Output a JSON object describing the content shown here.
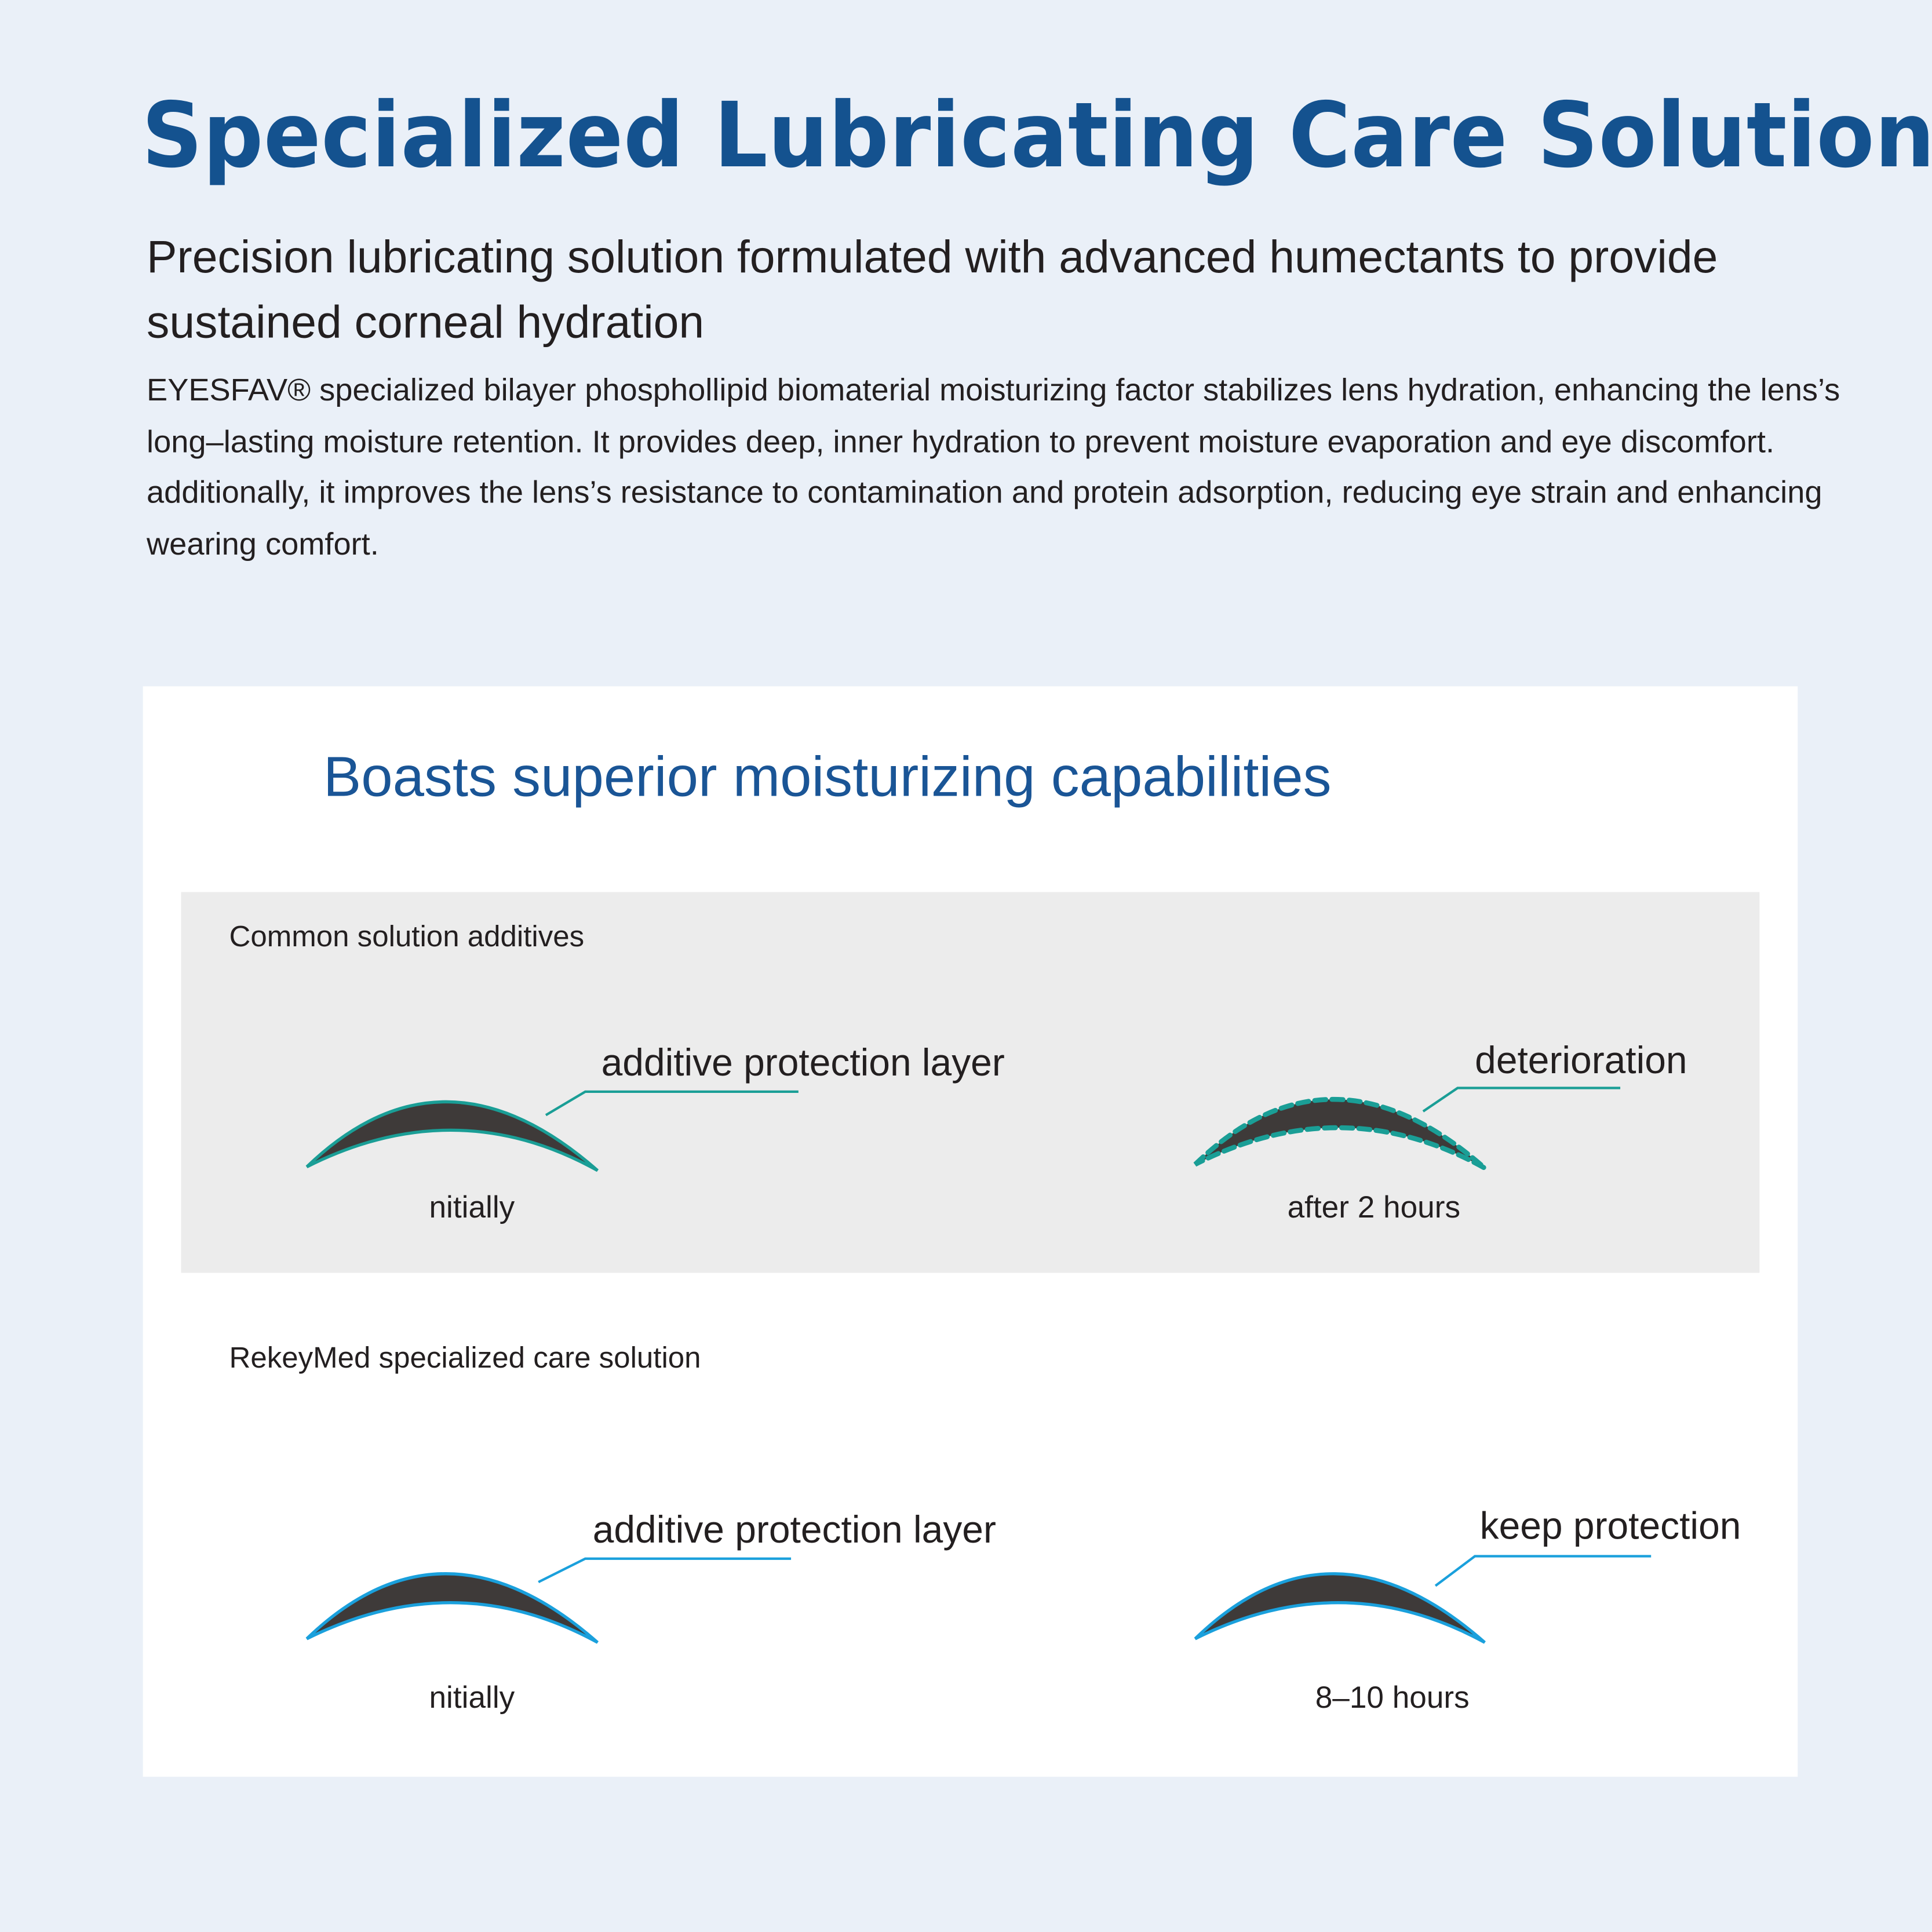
{
  "header": {
    "title": "Specialized Lubricating Care Solution",
    "subtitle": "Precision lubricating solution formulated with advanced humectants to provide sustained corneal hydration",
    "body": "EYESFAV® specialized bilayer phosphollipid biomaterial moisturizing factor stabilizes lens hydration, enhancing the lens’s long–lasting moisture retention. It provides deep, inner hydration to prevent moisture evaporation and eye discomfort. additionally, it improves the lens’s resistance to contamination and protein adsorption, reducing eye strain and enhancing wearing comfort."
  },
  "comparison": {
    "title": "Boasts superior moisturizing capabilities",
    "common": {
      "label": "Common solution additives",
      "left_callout": "additive protection layer",
      "left_caption": "nitially",
      "right_callout": "deterioration",
      "right_caption": "after 2 hours",
      "color": "#1a9e96"
    },
    "rekeymed": {
      "label": "RekeyMed specialized care solution",
      "left_callout": "additive protection layer",
      "left_caption": "nitially",
      "right_callout": "keep protection",
      "right_caption": "8–10 hours",
      "color": "#1aa0dc"
    }
  },
  "colors": {
    "title": "#14528f",
    "background": "#eaf0f8",
    "lens": "#3e3a39"
  }
}
